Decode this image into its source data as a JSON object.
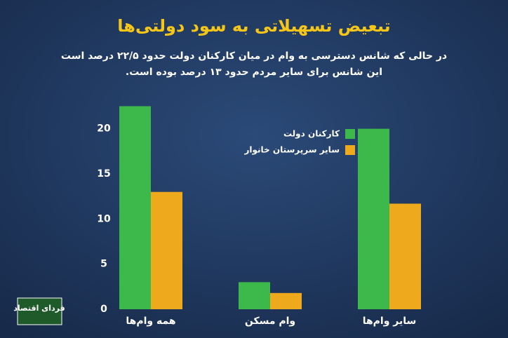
{
  "chart_data": {
    "type": "bar",
    "title": "تبعیض تسهیلاتی به سود دولتی‌ها",
    "subtitle": [
      "در حالی که شانس دسترسی به وام در میان کارکنان دولت حدود ۲۲/۵ درصد است",
      "این شانس برای سایر مردم حدود ۱۳ درصد بوده است."
    ],
    "categories": [
      "همه وام‌ها",
      "وام مسکن",
      "سایر وام‌ها"
    ],
    "series": [
      {
        "name": "کارکنان دولت",
        "color": "#3cb94a",
        "values": [
          22.5,
          3,
          20
        ]
      },
      {
        "name": "سایر سرپرستان خانوار",
        "color": "#eeaa1c",
        "values": [
          13,
          1.8,
          11.7
        ]
      }
    ],
    "ylim": [
      0,
      23
    ],
    "yticks": [
      0,
      5,
      10,
      15,
      20
    ],
    "grid": false,
    "legend": "upper-right",
    "logo": "فردای اقتصاد"
  }
}
